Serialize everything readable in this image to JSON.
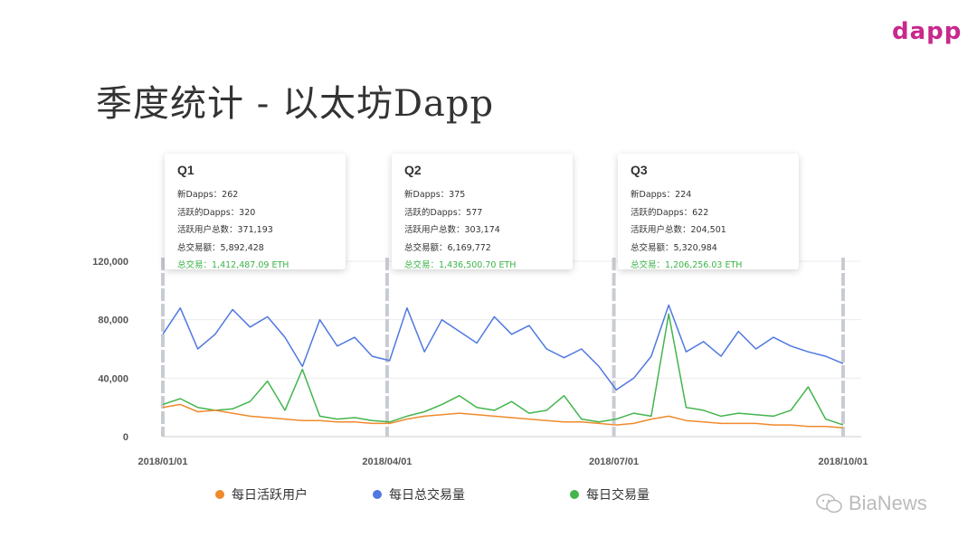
{
  "slide": {
    "title": "季度统计 - 以太坊Dapp",
    "logo_text": "dapp",
    "watermark": "BiaNews"
  },
  "colors": {
    "active_users": "#f08a2c",
    "total_tx": "#4f78e0",
    "daily_tx": "#43b54c",
    "divider": "#c8ccd2"
  },
  "cards": [
    {
      "quarter": "Q1",
      "new_dapps": "新Dapps：262",
      "active_dapps": "活跃的Dapps：320",
      "users": "活跃用户总数：371,193",
      "volume": "总交易额：5,892,428",
      "tx": "总交易：1,412,487.09 ETH"
    },
    {
      "quarter": "Q2",
      "new_dapps": "新Dapps：375",
      "active_dapps": "活跃的Dapps：577",
      "users": "活跃用户总数：303,174",
      "volume": "总交易额：6,169,772",
      "tx": "总交易：1,436,500.70 ETH"
    },
    {
      "quarter": "Q3",
      "new_dapps": "新Dapps：224",
      "active_dapps": "活跃的Dapps：622",
      "users": "活跃用户总数：204,501",
      "volume": "总交易额：5,320,984",
      "tx": "总交易：1,206,256.03 ETH"
    }
  ],
  "legend": [
    {
      "label": "每日活跃用户",
      "key": "active_users"
    },
    {
      "label": "每日总交易量",
      "key": "total_tx"
    },
    {
      "label": "每日交易量",
      "key": "daily_tx"
    }
  ],
  "chart_data": {
    "type": "line",
    "title": "",
    "xlabel": "",
    "ylabel": "",
    "ylim": [
      0,
      120000
    ],
    "yticks": [
      0,
      40000,
      80000,
      120000
    ],
    "ytick_labels": [
      "0",
      "40,000",
      "80,000",
      "120,000"
    ],
    "xlim": [
      "2018/01/01",
      "2018/10/01"
    ],
    "x_tick_labels": [
      "2018/01/01",
      "2018/04/01",
      "2018/07/01",
      "2018/10/01"
    ],
    "grid": true,
    "legend_position": "bottom",
    "x": [
      "2018/01/01",
      "2018/01/08",
      "2018/01/15",
      "2018/01/22",
      "2018/01/29",
      "2018/02/05",
      "2018/02/12",
      "2018/02/19",
      "2018/02/26",
      "2018/03/05",
      "2018/03/12",
      "2018/03/19",
      "2018/03/26",
      "2018/04/02",
      "2018/04/09",
      "2018/04/16",
      "2018/04/23",
      "2018/04/30",
      "2018/05/07",
      "2018/05/14",
      "2018/05/21",
      "2018/05/28",
      "2018/06/04",
      "2018/06/11",
      "2018/06/18",
      "2018/06/25",
      "2018/07/02",
      "2018/07/09",
      "2018/07/16",
      "2018/07/23",
      "2018/07/30",
      "2018/08/06",
      "2018/08/13",
      "2018/08/20",
      "2018/08/27",
      "2018/09/03",
      "2018/09/10",
      "2018/09/17",
      "2018/09/24",
      "2018/10/01"
    ],
    "series": [
      {
        "name": "每日总交易量",
        "key": "total_tx",
        "values": [
          70000,
          88000,
          60000,
          70000,
          87000,
          75000,
          82000,
          68000,
          48000,
          80000,
          62000,
          68000,
          55000,
          52000,
          88000,
          58000,
          80000,
          72000,
          64000,
          82000,
          70000,
          76000,
          60000,
          54000,
          60000,
          48000,
          32000,
          40000,
          55000,
          90000,
          58000,
          65000,
          55000,
          72000,
          60000,
          68000,
          62000,
          58000,
          55000,
          50000
        ]
      },
      {
        "name": "每日活跃用户",
        "key": "active_users",
        "values": [
          20000,
          22000,
          17000,
          18000,
          16000,
          14000,
          13000,
          12000,
          11000,
          11000,
          10000,
          10000,
          9000,
          9000,
          12000,
          14000,
          15000,
          16000,
          15000,
          14000,
          13000,
          12000,
          11000,
          10000,
          10000,
          9000,
          8000,
          9000,
          12000,
          14000,
          11000,
          10000,
          9000,
          9000,
          9000,
          8000,
          8000,
          7000,
          7000,
          6000
        ]
      },
      {
        "name": "每日交易量",
        "key": "daily_tx",
        "values": [
          22000,
          26000,
          20000,
          18000,
          19000,
          24000,
          38000,
          18000,
          46000,
          14000,
          12000,
          13000,
          11000,
          10000,
          14000,
          17000,
          22000,
          28000,
          20000,
          18000,
          24000,
          16000,
          18000,
          28000,
          12000,
          10000,
          12000,
          16000,
          14000,
          84000,
          20000,
          18000,
          14000,
          16000,
          15000,
          14000,
          18000,
          34000,
          12000,
          8000
        ]
      }
    ]
  }
}
